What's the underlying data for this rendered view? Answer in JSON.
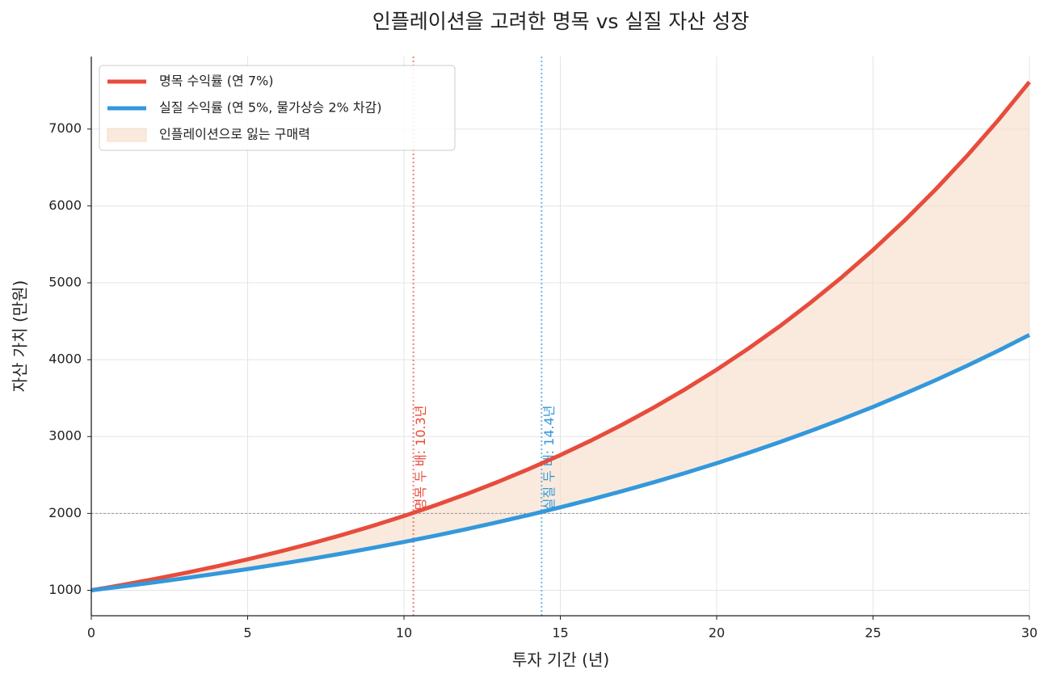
{
  "chart_data": {
    "type": "line",
    "title": "인플레이션을 고려한 명목 vs 실질 자산 성장",
    "x_label": "투자 기간 (년)",
    "y_label": "자산 가치 (만원)",
    "x": [
      0,
      1,
      2,
      3,
      4,
      5,
      6,
      7,
      8,
      9,
      10,
      11,
      12,
      13,
      14,
      15,
      16,
      17,
      18,
      19,
      20,
      21,
      22,
      23,
      24,
      25,
      26,
      27,
      28,
      29,
      30
    ],
    "series": [
      {
        "name": "명목 수익률 (연 7%)",
        "color": "#e74c3c",
        "values": [
          1000,
          1070,
          1145,
          1225,
          1311,
          1403,
          1501,
          1606,
          1718,
          1838,
          1967,
          2105,
          2252,
          2410,
          2579,
          2759,
          2952,
          3159,
          3380,
          3617,
          3870,
          4141,
          4430,
          4741,
          5072,
          5427,
          5807,
          6214,
          6649,
          7114,
          7612
        ]
      },
      {
        "name": "실질 수익률 (연 5%, 물가상승 2% 차감)",
        "color": "#3498db",
        "values": [
          1000,
          1050,
          1103,
          1158,
          1216,
          1276,
          1340,
          1407,
          1477,
          1551,
          1629,
          1710,
          1796,
          1886,
          1980,
          2079,
          2183,
          2292,
          2407,
          2527,
          2653,
          2786,
          2925,
          3072,
          3225,
          3386,
          3556,
          3733,
          3920,
          4116,
          4322
        ]
      }
    ],
    "fill_between": {
      "name": "인플레이션으로 잃는 구매력",
      "color": "#f5dcc6"
    },
    "vlines": [
      {
        "x": 10.3,
        "label": "명목 두 배: 10.3년",
        "color": "#e74c3c"
      },
      {
        "x": 14.4,
        "label": "실질 두 배: 14.4년",
        "color": "#3498db"
      }
    ],
    "hlines": [
      {
        "y": 2000,
        "color": "#999999"
      }
    ],
    "xlim": [
      0,
      30
    ],
    "xticks": [
      0,
      5,
      10,
      15,
      20,
      25,
      30
    ],
    "ylim": [
      669,
      7943
    ],
    "yticks": [
      1000,
      2000,
      3000,
      4000,
      5000,
      6000,
      7000
    ],
    "grid": true,
    "legend": "upper left"
  }
}
